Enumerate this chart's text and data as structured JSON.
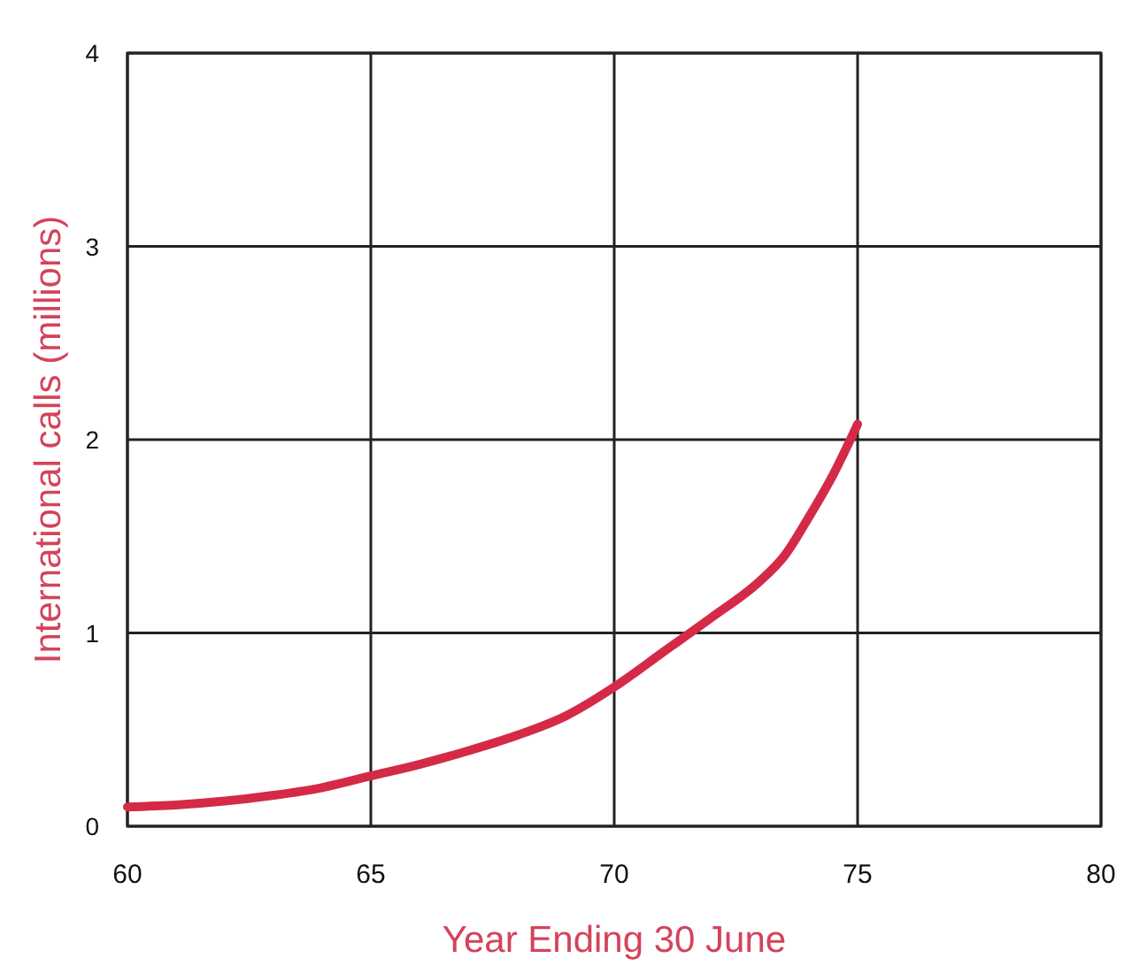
{
  "chart_data": {
    "type": "line",
    "xlabel": "Year Ending 30 June",
    "ylabel": "International calls (millions)",
    "series": [
      {
        "color": "#d42a48",
        "x": [
          60,
          61,
          62,
          63,
          64,
          65,
          66,
          67,
          68,
          69,
          70,
          71,
          72,
          73,
          73.5,
          74,
          74.5,
          75
        ],
        "values": [
          0.1,
          0.11,
          0.13,
          0.16,
          0.2,
          0.26,
          0.32,
          0.39,
          0.47,
          0.57,
          0.72,
          0.9,
          1.08,
          1.27,
          1.4,
          1.6,
          1.82,
          2.08
        ]
      }
    ],
    "xlim": [
      60,
      80
    ],
    "xticks": [
      60,
      65,
      70,
      75,
      80
    ],
    "ylim": [
      0,
      4
    ],
    "yticks": [
      0,
      1,
      2,
      3,
      4
    ],
    "grid": true,
    "marker": "none",
    "line_style": "solid"
  }
}
